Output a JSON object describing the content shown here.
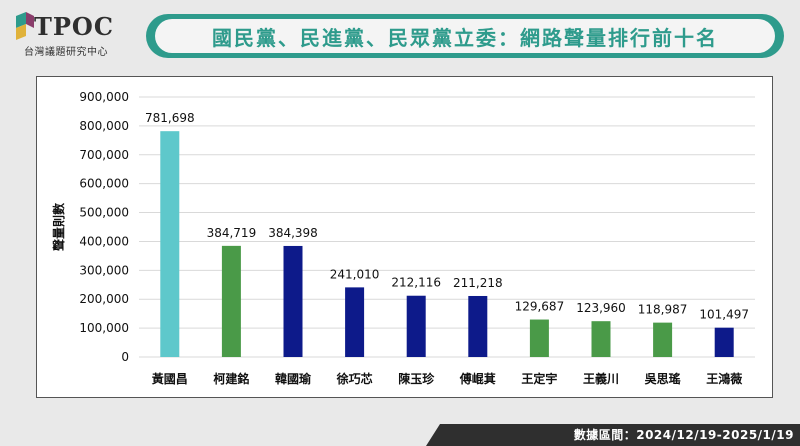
{
  "header": {
    "logo_text": "TPOC",
    "logo_subtitle": "台灣議題研究中心",
    "title": "國民黨、民進黨、民眾黨立委：網路聲量排行前十名"
  },
  "footer": {
    "date_range": "數據區間：2024/12/19-2025/1/19"
  },
  "colors": {
    "title_bar": "#2e9b8c",
    "bar_teal": "#5ec8cb",
    "bar_green": "#4a9a48",
    "bar_navy": "#0d1a8a"
  },
  "chart_data": {
    "type": "bar",
    "ylabel": "聲量則數",
    "xlabel": "",
    "ylim": [
      0,
      900000
    ],
    "yticks": [
      0,
      100000,
      200000,
      300000,
      400000,
      500000,
      600000,
      700000,
      800000,
      900000
    ],
    "ytick_labels": [
      "0",
      "100,000",
      "200,000",
      "300,000",
      "400,000",
      "500,000",
      "600,000",
      "700,000",
      "800,000",
      "900,000"
    ],
    "grid": true,
    "categories": [
      "黃國昌",
      "柯建銘",
      "韓國瑜",
      "徐巧芯",
      "陳玉珍",
      "傅崐萁",
      "王定宇",
      "王義川",
      "吳思瑤",
      "王鴻薇"
    ],
    "values": [
      781698,
      384719,
      384398,
      241010,
      212116,
      211218,
      129687,
      123960,
      118987,
      101497
    ],
    "value_labels": [
      "781,698",
      "384,719",
      "384,398",
      "241,010",
      "212,116",
      "211,218",
      "129,687",
      "123,960",
      "118,987",
      "101,497"
    ],
    "bar_colors": [
      "#5ec8cb",
      "#4a9a48",
      "#0d1a8a",
      "#0d1a8a",
      "#0d1a8a",
      "#0d1a8a",
      "#4a9a48",
      "#4a9a48",
      "#4a9a48",
      "#0d1a8a"
    ]
  }
}
